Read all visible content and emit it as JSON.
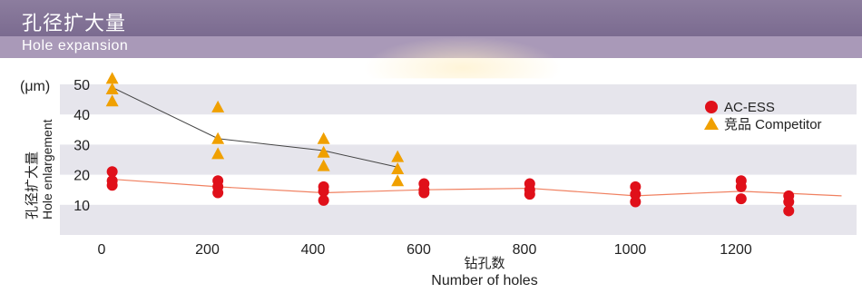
{
  "header": {
    "title_cn": "孔径扩大量",
    "title_en": "Hole expansion"
  },
  "colors": {
    "header_bar": "#7b6b90",
    "subheader_bar": "#a999b8",
    "band": "#e6e5ec",
    "ac_ess": "#e0101a",
    "competitor": "#f0a000",
    "ac_line": "#f08060",
    "comp_line": "#444444"
  },
  "chart_data": {
    "type": "scatter",
    "ylabel_cn": "孔径扩大量",
    "ylabel_en": "Hole enlargement",
    "unit": "(μm)",
    "xlabel_cn": "钻孔数",
    "xlabel_en": "Number of holes",
    "xlim": [
      0,
      1400
    ],
    "ylim": [
      0,
      50
    ],
    "xticks": [
      0,
      200,
      400,
      600,
      800,
      1000,
      1200
    ],
    "yticks": [
      10,
      20,
      30,
      40,
      50
    ],
    "grid": "horizontal bands",
    "legend_position": "top-right",
    "series": [
      {
        "name": "AC-ESS",
        "marker": "circle",
        "color": "#e0101a",
        "points": [
          {
            "x": 20,
            "y": 21
          },
          {
            "x": 20,
            "y": 18
          },
          {
            "x": 20,
            "y": 16.5
          },
          {
            "x": 220,
            "y": 18
          },
          {
            "x": 220,
            "y": 16
          },
          {
            "x": 220,
            "y": 14
          },
          {
            "x": 420,
            "y": 16
          },
          {
            "x": 420,
            "y": 14.5
          },
          {
            "x": 420,
            "y": 11.5
          },
          {
            "x": 610,
            "y": 17
          },
          {
            "x": 610,
            "y": 15
          },
          {
            "x": 610,
            "y": 14
          },
          {
            "x": 810,
            "y": 17
          },
          {
            "x": 810,
            "y": 15
          },
          {
            "x": 810,
            "y": 13.5
          },
          {
            "x": 1010,
            "y": 16
          },
          {
            "x": 1010,
            "y": 13.5
          },
          {
            "x": 1010,
            "y": 11
          },
          {
            "x": 1210,
            "y": 18
          },
          {
            "x": 1210,
            "y": 16
          },
          {
            "x": 1210,
            "y": 12
          },
          {
            "x": 1300,
            "y": 13
          },
          {
            "x": 1300,
            "y": 11
          },
          {
            "x": 1300,
            "y": 8
          }
        ],
        "trend": [
          {
            "x": 20,
            "y": 18.5
          },
          {
            "x": 220,
            "y": 16
          },
          {
            "x": 420,
            "y": 14
          },
          {
            "x": 610,
            "y": 15
          },
          {
            "x": 810,
            "y": 15.5
          },
          {
            "x": 1010,
            "y": 13
          },
          {
            "x": 1210,
            "y": 14.5
          },
          {
            "x": 1400,
            "y": 13
          }
        ]
      },
      {
        "name": "竞品 Competitor",
        "marker": "triangle",
        "color": "#f0a000",
        "points": [
          {
            "x": 20,
            "y": 52
          },
          {
            "x": 20,
            "y": 48.5
          },
          {
            "x": 20,
            "y": 44.5
          },
          {
            "x": 220,
            "y": 42.5
          },
          {
            "x": 220,
            "y": 32
          },
          {
            "x": 220,
            "y": 27
          },
          {
            "x": 420,
            "y": 32
          },
          {
            "x": 420,
            "y": 27.5
          },
          {
            "x": 420,
            "y": 23
          },
          {
            "x": 560,
            "y": 26
          },
          {
            "x": 560,
            "y": 22
          },
          {
            "x": 560,
            "y": 18
          }
        ],
        "trend": [
          {
            "x": 20,
            "y": 49
          },
          {
            "x": 220,
            "y": 32
          },
          {
            "x": 420,
            "y": 28
          },
          {
            "x": 560,
            "y": 22.5
          }
        ]
      }
    ]
  }
}
